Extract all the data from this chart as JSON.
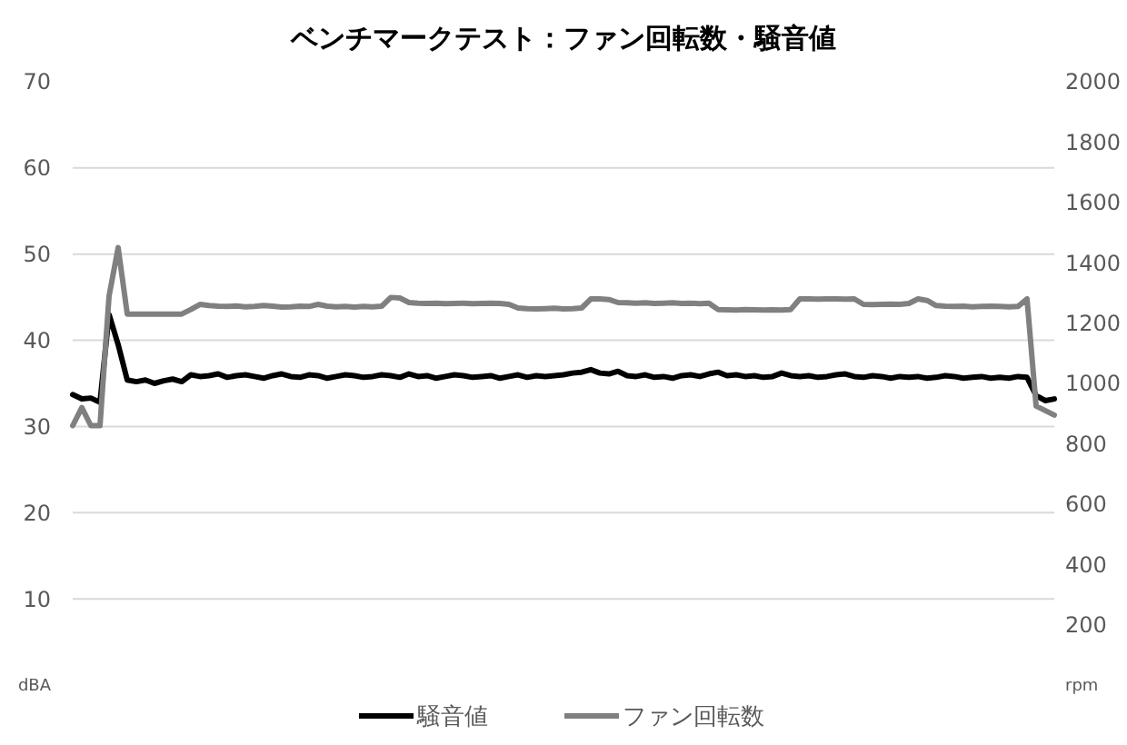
{
  "chart_data": {
    "type": "line",
    "title": "ベンチマークテスト：ファン回転数・騒音値",
    "categories": [
      null,
      null,
      null,
      null,
      null,
      null,
      null,
      null,
      null,
      null,
      null,
      null,
      null,
      null,
      null,
      null,
      null,
      null,
      null,
      null,
      null,
      null,
      null,
      null,
      null,
      null,
      null,
      null,
      null,
      null,
      null,
      null,
      null,
      null,
      null,
      null,
      null,
      null,
      null,
      null,
      null,
      null,
      null,
      null,
      null,
      null,
      null,
      null,
      null,
      null,
      null,
      null,
      null,
      null,
      null,
      null,
      null,
      null,
      null,
      null,
      null,
      null,
      null,
      null,
      null,
      null,
      null,
      null,
      null,
      null,
      null,
      null,
      null,
      null,
      null,
      null,
      null,
      null,
      null,
      null,
      null,
      null,
      null,
      null,
      null,
      null,
      null,
      null,
      null,
      null,
      null,
      null,
      null,
      null,
      null,
      null,
      null,
      null,
      null,
      null,
      null,
      null,
      null,
      null,
      null,
      null,
      null,
      null,
      null
    ],
    "series": [
      {
        "name": "騒音値",
        "color": "#000000",
        "values": [
          33.7,
          33.2,
          33.3,
          32.8,
          43.0,
          39.5,
          35.4,
          35.2,
          35.4,
          35.0,
          35.3,
          35.5,
          35.2,
          36.0,
          35.8,
          35.9,
          36.1,
          35.7,
          35.9,
          36.0,
          35.8,
          35.6,
          35.9,
          36.1,
          35.8,
          35.7,
          36.0,
          35.9,
          35.6,
          35.8,
          36.0,
          35.9,
          35.7,
          35.8,
          36.0,
          35.9,
          35.7,
          36.1,
          35.8,
          35.9,
          35.6,
          35.8,
          36.0,
          35.9,
          35.7,
          35.8,
          35.9,
          35.6,
          35.8,
          36.0,
          35.7,
          35.9,
          35.8,
          35.9,
          36.0,
          36.2,
          36.3,
          36.6,
          36.2,
          36.1,
          36.4,
          35.9,
          35.8,
          36.0,
          35.7,
          35.8,
          35.6,
          35.9,
          36.0,
          35.8,
          36.1,
          36.3,
          35.9,
          36.0,
          35.8,
          35.9,
          35.7,
          35.8,
          36.2,
          35.9,
          35.8,
          35.9,
          35.7,
          35.8,
          36.0,
          36.1,
          35.8,
          35.7,
          35.9,
          35.8,
          35.6,
          35.8,
          35.7,
          35.8,
          35.6,
          35.7,
          35.9,
          35.8,
          35.6,
          35.7,
          35.8,
          35.6,
          35.7,
          35.6,
          35.8,
          35.7,
          33.6,
          33.0,
          33.2
        ]
      },
      {
        "name": "ファン回転数",
        "color": "#808080",
        "axis": "y2",
        "values": [
          860,
          920,
          860,
          860,
          1290,
          1450,
          1230,
          1230,
          1230,
          1230,
          1230,
          1230,
          1230,
          1245,
          1262,
          1258,
          1256,
          1255,
          1257,
          1254,
          1255,
          1258,
          1256,
          1253,
          1254,
          1256,
          1255,
          1262,
          1256,
          1254,
          1255,
          1253,
          1255,
          1254,
          1256,
          1285,
          1283,
          1268,
          1266,
          1265,
          1266,
          1264,
          1265,
          1266,
          1264,
          1265,
          1266,
          1265,
          1262,
          1250,
          1248,
          1247,
          1248,
          1249,
          1247,
          1248,
          1250,
          1280,
          1280,
          1278,
          1268,
          1267,
          1266,
          1267,
          1265,
          1266,
          1267,
          1265,
          1266,
          1264,
          1266,
          1245,
          1244,
          1243,
          1245,
          1244,
          1243,
          1244,
          1243,
          1245,
          1280,
          1280,
          1279,
          1280,
          1280,
          1279,
          1280,
          1262,
          1261,
          1262,
          1263,
          1262,
          1265,
          1280,
          1275,
          1258,
          1256,
          1255,
          1256,
          1254,
          1255,
          1256,
          1255,
          1254,
          1255,
          1280,
          925,
          910,
          895
        ]
      }
    ],
    "ylim": [
      0,
      70
    ],
    "yticks": [
      {
        "value": 0,
        "label": "dBA"
      },
      10,
      20,
      30,
      40,
      50,
      60,
      70
    ],
    "y2lim": [
      0,
      2000
    ],
    "y2ticks": [
      {
        "value": 0,
        "label": "rpm"
      },
      200,
      400,
      600,
      800,
      1000,
      1200,
      1400,
      1600,
      1800,
      2000
    ],
    "grid": "y",
    "legend": "bottom"
  }
}
